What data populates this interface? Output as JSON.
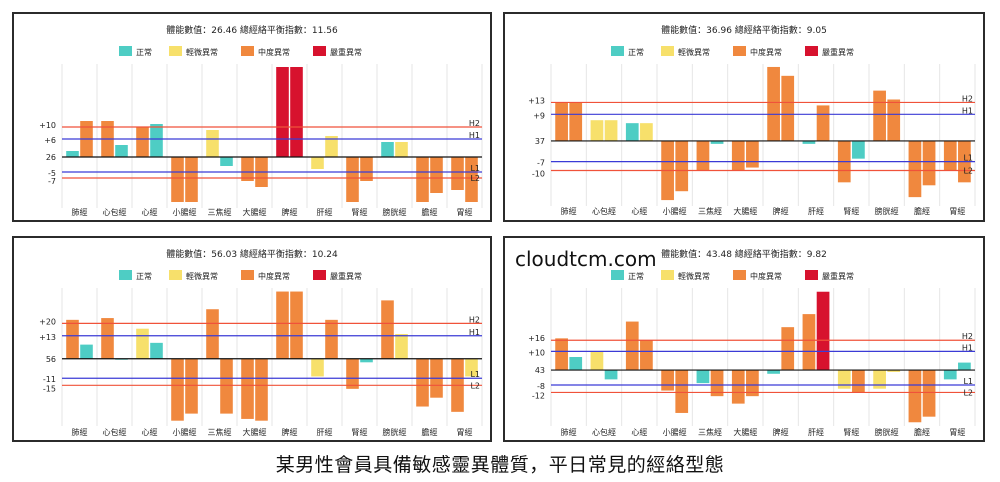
{
  "brand": "cloudtcm.com",
  "caption": "某男性會員具備敏感靈異體質，平日常見的經絡型態",
  "legend": [
    {
      "label": "正常",
      "color": "#4ecdc4"
    },
    {
      "label": "輕微異常",
      "color": "#f7e06b"
    },
    {
      "label": "中度異常",
      "color": "#f0883e"
    },
    {
      "label": "嚴重異常",
      "color": "#d7122e"
    }
  ],
  "line_colors": {
    "h": "#f0523a",
    "l": "#f0523a",
    "h1": "#3b3bd6",
    "l1": "#3b3bd6",
    "base": "#111111"
  },
  "chart_data": [
    {
      "type": "bar",
      "title": "體能數值：26.46 總經絡平衡指數：11.56",
      "categories": [
        "肺經",
        "心包經",
        "心經",
        "小腸經",
        "三焦經",
        "大腸經",
        "脾經",
        "肝經",
        "腎經",
        "膀胱經",
        "膽經",
        "胃經"
      ],
      "series": [
        {
          "name": "left",
          "values": [
            2,
            12,
            10,
            -15,
            9,
            -8,
            30,
            -4,
            -15,
            5,
            -15,
            -11
          ],
          "status": [
            0,
            2,
            2,
            2,
            1,
            2,
            3,
            1,
            2,
            0,
            2,
            2
          ]
        },
        {
          "name": "right",
          "values": [
            12,
            4,
            11,
            -15,
            -3,
            -10,
            30,
            7,
            -8,
            5,
            -12,
            -15
          ],
          "status": [
            2,
            0,
            0,
            2,
            0,
            2,
            3,
            1,
            2,
            1,
            2,
            2
          ]
        }
      ],
      "baseline_label": "26",
      "thresholds": {
        "H2": 10,
        "H1": 6,
        "L1": -5,
        "L2": -7
      },
      "ylim": [
        -17,
        31
      ]
    },
    {
      "type": "bar",
      "title": "體能數值：36.96 總經絡平衡指數：9.05",
      "categories": [
        "肺經",
        "心包經",
        "心經",
        "小腸經",
        "三焦經",
        "大腸經",
        "脾經",
        "肝經",
        "腎經",
        "膀胱經",
        "膽經",
        "胃經"
      ],
      "series": [
        {
          "name": "left",
          "values": [
            13,
            7,
            6,
            -20,
            -10,
            -10,
            25,
            -1,
            -14,
            17,
            -19,
            -10
          ],
          "status": [
            2,
            1,
            0,
            2,
            2,
            2,
            2,
            0,
            2,
            2,
            2,
            2
          ]
        },
        {
          "name": "right",
          "values": [
            13,
            7,
            6,
            -17,
            -1,
            -9,
            22,
            12,
            -6,
            14,
            -15,
            -14
          ],
          "status": [
            2,
            1,
            1,
            2,
            0,
            2,
            2,
            2,
            0,
            2,
            2,
            2
          ]
        }
      ],
      "baseline_label": "37",
      "thresholds": {
        "H2": 13,
        "H1": 9,
        "L1": -7,
        "L2": -10
      },
      "ylim": [
        -22,
        26
      ]
    },
    {
      "type": "bar",
      "title": "體能數值：56.03 總經絡平衡指數：10.24",
      "categories": [
        "肺經",
        "心包經",
        "心經",
        "小腸經",
        "三焦經",
        "大腸經",
        "脾經",
        "肝經",
        "腎經",
        "膀胱經",
        "膽經",
        "胃經"
      ],
      "series": [
        {
          "name": "left",
          "values": [
            22,
            23,
            17,
            -35,
            28,
            -34,
            38,
            -10,
            -17,
            33,
            -27,
            -30
          ],
          "status": [
            2,
            2,
            1,
            2,
            2,
            2,
            2,
            1,
            2,
            2,
            2,
            2
          ]
        },
        {
          "name": "right",
          "values": [
            8,
            0,
            9,
            -31,
            -31,
            -35,
            38,
            22,
            -2,
            14,
            -22,
            -10
          ],
          "status": [
            0,
            0,
            0,
            2,
            2,
            2,
            2,
            2,
            0,
            1,
            2,
            1
          ]
        }
      ],
      "baseline_label": "56",
      "thresholds": {
        "H2": 20,
        "H1": 13,
        "L1": -11,
        "L2": -15
      },
      "ylim": [
        -38,
        40
      ]
    },
    {
      "type": "bar",
      "title": "體能數值：43.48 總經絡平衡指數：9.82",
      "categories": [
        "肺經",
        "心包經",
        "心經",
        "小腸經",
        "三焦經",
        "大腸經",
        "脾經",
        "肝經",
        "腎經",
        "膀胱經",
        "膽經",
        "胃經"
      ],
      "series": [
        {
          "name": "left",
          "values": [
            17,
            10,
            26,
            -11,
            -7,
            -18,
            -2,
            30,
            -10,
            -10,
            -28,
            -5
          ],
          "status": [
            2,
            1,
            2,
            2,
            0,
            2,
            0,
            2,
            1,
            1,
            2,
            0
          ]
        },
        {
          "name": "right",
          "values": [
            7,
            -5,
            16,
            -23,
            -14,
            -14,
            23,
            42,
            -12,
            -1,
            -25,
            4
          ],
          "status": [
            0,
            0,
            2,
            2,
            2,
            2,
            2,
            3,
            2,
            1,
            2,
            0
          ]
        }
      ],
      "baseline_label": "43",
      "thresholds": {
        "H2": 16,
        "H1": 10,
        "L1": -8,
        "L2": -12
      },
      "ylim": [
        -30,
        44
      ]
    }
  ]
}
